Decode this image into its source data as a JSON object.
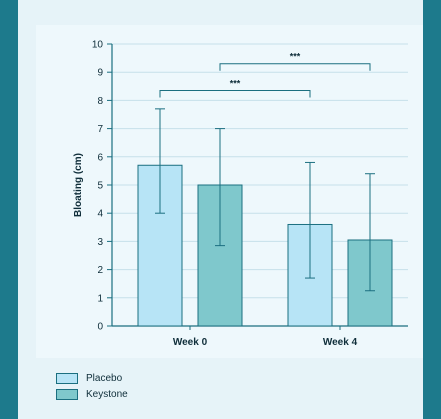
{
  "colors": {
    "page_border": "#1d7a8c",
    "panel_bg": "#e6f3f8",
    "plot_bg": "#eef8fc",
    "axis": "#1b6f80",
    "grid": "#c6e0ea",
    "text": "#0f2e3a",
    "placebo": "#b7e4f6",
    "keystone": "#7fc8cc",
    "bar_edge": "#1b6f80"
  },
  "chart_data": {
    "type": "bar",
    "title": "",
    "xlabel": "",
    "ylabel": "Bloating (cm)",
    "ylim": [
      0,
      10
    ],
    "yticks": [
      0,
      1,
      2,
      3,
      4,
      5,
      6,
      7,
      8,
      9,
      10
    ],
    "grid": true,
    "categories": [
      "Week 0",
      "Week 4"
    ],
    "series": [
      {
        "name": "Placebo",
        "values": [
          5.7,
          3.6
        ],
        "error_low": [
          4.0,
          1.7
        ],
        "error_high": [
          7.7,
          5.8
        ]
      },
      {
        "name": "Keystone",
        "values": [
          5.0,
          3.05
        ],
        "error_low": [
          2.85,
          1.25
        ],
        "error_high": [
          7.0,
          5.4
        ]
      }
    ],
    "significance": [
      {
        "label": "***",
        "from": [
          0,
          0
        ],
        "to": [
          1,
          0
        ],
        "y": 8.35
      },
      {
        "label": "***",
        "from": [
          0,
          1
        ],
        "to": [
          1,
          1
        ],
        "y": 9.3
      }
    ],
    "legend_position": "bottom-left"
  }
}
